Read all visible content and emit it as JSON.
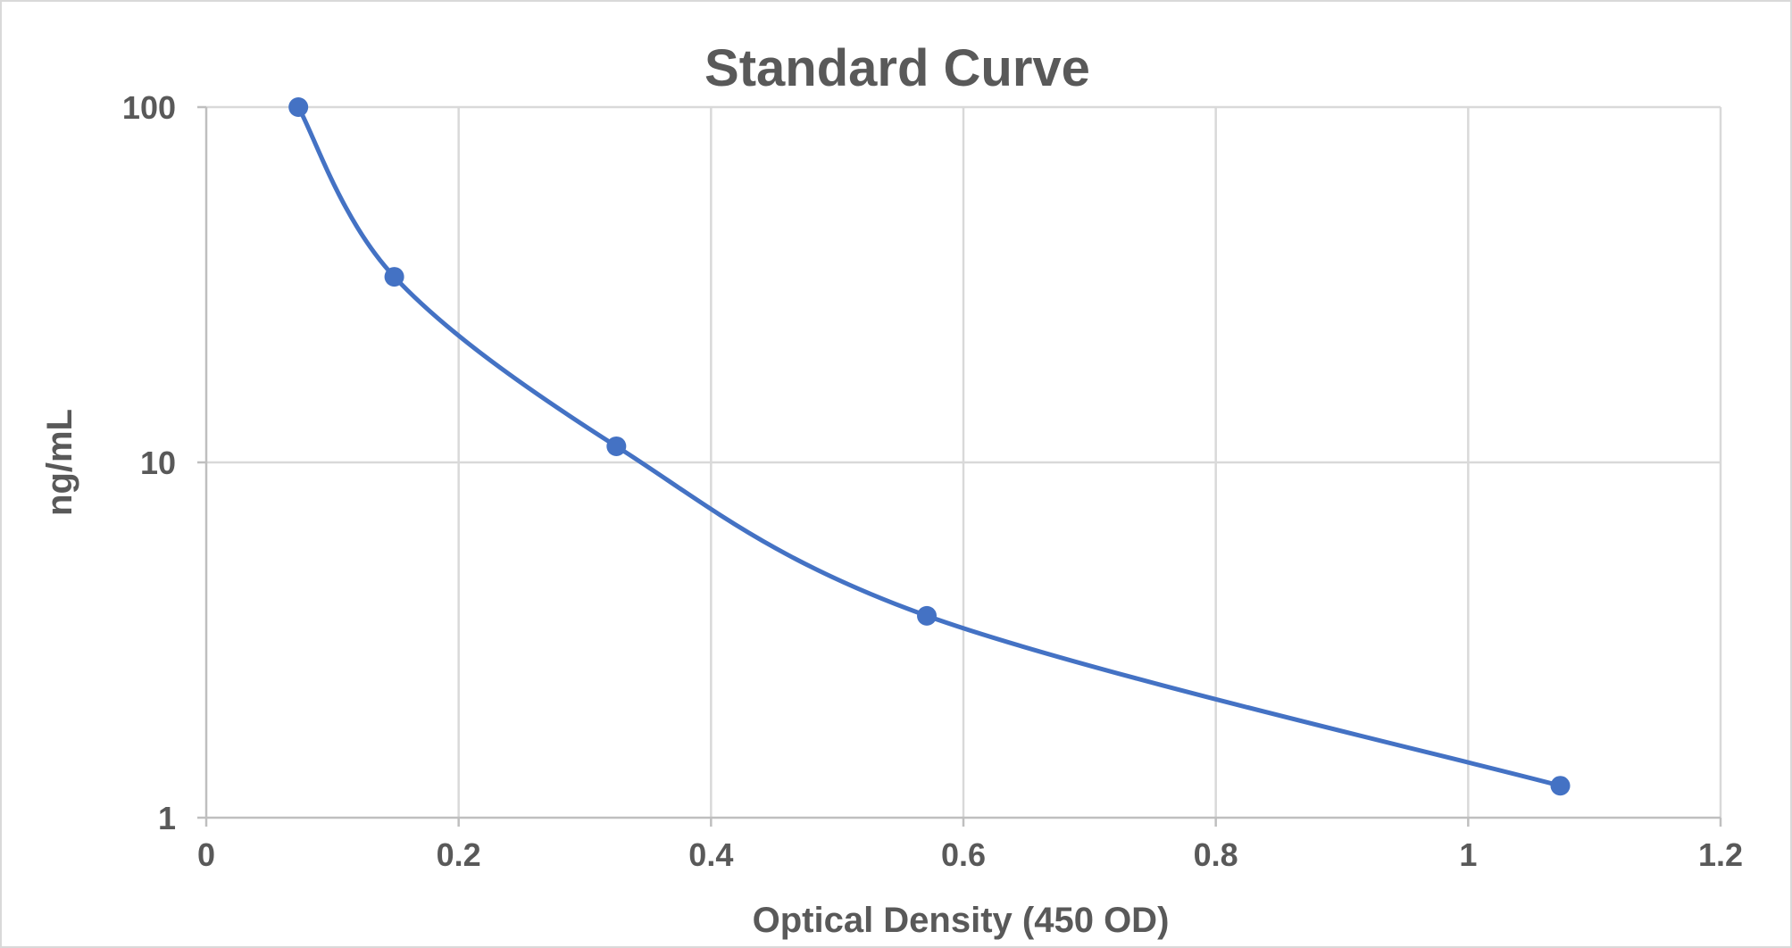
{
  "chart_data": {
    "type": "scatter",
    "title": "Standard Curve",
    "xlabel": "Optical Density (450 OD)",
    "ylabel": "ng/mL",
    "xlim": [
      0,
      1.2
    ],
    "ylim": [
      1,
      100
    ],
    "y_scale": "log",
    "x_ticks": [
      "0",
      "0.2",
      "0.4",
      "0.6",
      "0.8",
      "1",
      "1.2"
    ],
    "y_ticks": [
      "1",
      "10",
      "100"
    ],
    "grid": true,
    "legend": "none",
    "smoothed_line": true,
    "series": [
      {
        "color": "#4472C4",
        "points": [
          {
            "x": 0.073,
            "y": 100
          },
          {
            "x": 0.149,
            "y": 33.3
          },
          {
            "x": 0.325,
            "y": 11.1
          },
          {
            "x": 0.571,
            "y": 3.7
          },
          {
            "x": 1.073,
            "y": 1.23
          }
        ]
      }
    ]
  }
}
